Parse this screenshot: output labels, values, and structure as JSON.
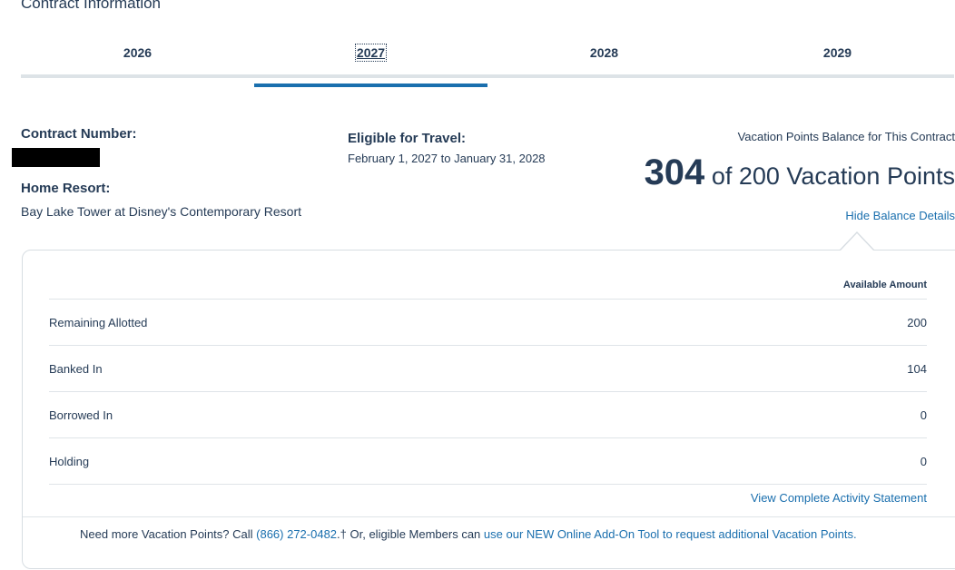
{
  "section": {
    "title": "Contract Information"
  },
  "tabs": [
    {
      "label": "2026",
      "active": false
    },
    {
      "label": "2027",
      "active": true
    },
    {
      "label": "2028",
      "active": false
    },
    {
      "label": "2029",
      "active": false
    }
  ],
  "contract": {
    "number_label": "Contract Number:",
    "home_resort_label": "Home Resort:",
    "home_resort_value": "Bay Lake Tower at Disney's Contemporary Resort",
    "eligible_label": "Eligible for Travel:",
    "eligible_value": "February 1, 2027 to January 31, 2028"
  },
  "balance": {
    "caption": "Vacation Points Balance for This Contract",
    "points": "304",
    "rest": " of 200 Vacation Points",
    "hide_link": "Hide Balance Details"
  },
  "details": {
    "header": "Available Amount",
    "rows": [
      {
        "label": "Remaining Allotted",
        "value": "200"
      },
      {
        "label": "Banked In",
        "value": "104"
      },
      {
        "label": "Borrowed In",
        "value": "0"
      },
      {
        "label": "Holding",
        "value": "0"
      }
    ],
    "activity_link": "View Complete Activity Statement"
  },
  "footer": {
    "prefix": "Need more Vacation Points? Call ",
    "phone": "(866) 272-0482",
    "middle": ".† Or, eligible Members can ",
    "addon_link": "use our NEW Online Add-On Tool to request additional Vacation Points."
  },
  "colors": {
    "text": "#253b56",
    "link": "#1a6fae",
    "active_tab_underline": "#1a6fae"
  }
}
